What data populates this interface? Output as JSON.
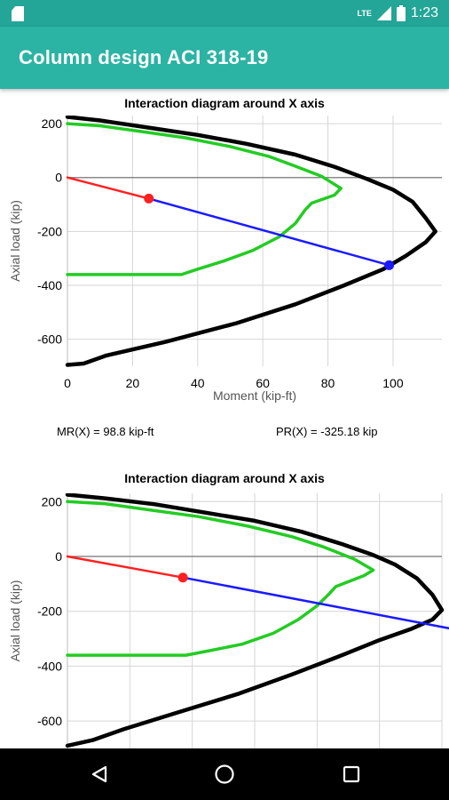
{
  "status_bar": {
    "time": "1:23",
    "network_label": "LTE",
    "sd_icon": "sd-card-icon",
    "signal_icon": "signal-icon",
    "battery_icon": "battery-icon"
  },
  "app_bar": {
    "title": "Column design ACI 318-19"
  },
  "results": {
    "mr": "MR(X) = 98.8 kip-ft",
    "pr": "PR(X) = -325.18 kip"
  },
  "nav_bar": {
    "back_icon": "back-triangle-icon",
    "home_icon": "home-circle-icon",
    "recents_icon": "recents-square-icon"
  },
  "colors": {
    "status_bar": "#23a597",
    "app_bar": "#2bb3a4",
    "nominal": "#000000",
    "design": "#22cc22",
    "load_segment": "#ff2020",
    "extension_segment": "#1a1aff"
  },
  "chart_data": [
    {
      "type": "line",
      "title": "Interaction diagram around X axis",
      "xlabel": "Moment (kip-ft)",
      "ylabel": "Axial load (kip)",
      "xlim": [
        0,
        115
      ],
      "ylim": [
        -700,
        230
      ],
      "x_ticks": [
        "0",
        "20",
        "40",
        "60",
        "80",
        "100"
      ],
      "y_ticks": [
        "200",
        "0",
        "-200",
        "-400",
        "-600"
      ],
      "grid": true,
      "series": [
        {
          "color": "#000000",
          "points": [
            [
              0,
              225
            ],
            [
              10,
              212
            ],
            [
              25,
              185
            ],
            [
              40,
              158
            ],
            [
              55,
              125
            ],
            [
              70,
              85
            ],
            [
              82,
              40
            ],
            [
              92,
              -5
            ],
            [
              100,
              -45
            ],
            [
              106,
              -90
            ],
            [
              110,
              -150
            ],
            [
              113,
              -200
            ],
            [
              110,
              -240
            ],
            [
              104,
              -290
            ],
            [
              97,
              -340
            ],
            [
              85,
              -400
            ],
            [
              70,
              -470
            ],
            [
              52,
              -540
            ],
            [
              30,
              -610
            ],
            [
              12,
              -660
            ],
            [
              5,
              -690
            ],
            [
              0,
              -695
            ]
          ]
        },
        {
          "color": "#22cc22",
          "points": [
            [
              0,
              200
            ],
            [
              10,
              192
            ],
            [
              22,
              172
            ],
            [
              36,
              148
            ],
            [
              50,
              115
            ],
            [
              62,
              78
            ],
            [
              70,
              42
            ],
            [
              78,
              5
            ],
            [
              84,
              -40
            ],
            [
              82,
              -65
            ],
            [
              75,
              -95
            ],
            [
              73,
              -120
            ],
            [
              70,
              -170
            ],
            [
              65,
              -220
            ],
            [
              57,
              -270
            ],
            [
              48,
              -310
            ],
            [
              40,
              -340
            ],
            [
              35,
              -360
            ],
            [
              0,
              -360
            ]
          ]
        },
        {
          "color": "#ff2020",
          "points": [
            [
              0,
              0
            ],
            [
              25,
              -78
            ]
          ]
        },
        {
          "color": "#1a1aff",
          "points": [
            [
              25,
              -78
            ],
            [
              98.8,
              -325.18
            ]
          ]
        }
      ],
      "markers": [
        {
          "color": "#ff2020",
          "x": 25,
          "y": -78
        },
        {
          "color": "#1a1aff",
          "x": 98.8,
          "y": -325.18
        }
      ]
    },
    {
      "type": "line",
      "title": "Interaction diagram around X axis",
      "xlabel": "",
      "ylabel": "Axial load (kip)",
      "xlim": [
        0,
        120
      ],
      "ylim": [
        -700,
        230
      ],
      "x_ticks": [],
      "y_ticks": [
        "200",
        "0",
        "-200",
        "-400",
        "-600"
      ],
      "grid": true,
      "series": [
        {
          "color": "#000000",
          "points": [
            [
              0,
              225
            ],
            [
              12,
              212
            ],
            [
              28,
              190
            ],
            [
              45,
              158
            ],
            [
              60,
              130
            ],
            [
              75,
              90
            ],
            [
              88,
              45
            ],
            [
              98,
              5
            ],
            [
              105,
              -30
            ],
            [
              112,
              -80
            ],
            [
              117,
              -140
            ],
            [
              120,
              -195
            ],
            [
              117,
              -230
            ],
            [
              110,
              -265
            ],
            [
              100,
              -305
            ],
            [
              88,
              -360
            ],
            [
              72,
              -430
            ],
            [
              55,
              -500
            ],
            [
              35,
              -570
            ],
            [
              18,
              -630
            ],
            [
              8,
              -670
            ],
            [
              0,
              -690
            ]
          ]
        },
        {
          "color": "#22cc22",
          "points": [
            [
              0,
              200
            ],
            [
              12,
              192
            ],
            [
              26,
              170
            ],
            [
              42,
              145
            ],
            [
              58,
              110
            ],
            [
              72,
              72
            ],
            [
              82,
              35
            ],
            [
              92,
              -10
            ],
            [
              98,
              -50
            ],
            [
              95,
              -70
            ],
            [
              86,
              -110
            ],
            [
              84,
              -135
            ],
            [
              80,
              -180
            ],
            [
              74,
              -230
            ],
            [
              66,
              -280
            ],
            [
              56,
              -320
            ],
            [
              45,
              -345
            ],
            [
              38,
              -360
            ],
            [
              0,
              -360
            ]
          ]
        },
        {
          "color": "#ff2020",
          "points": [
            [
              0,
              0
            ],
            [
              37,
              -77
            ]
          ]
        },
        {
          "color": "#1a1aff",
          "points": [
            [
              37,
              -77
            ],
            [
              126,
              -270
            ]
          ]
        }
      ],
      "markers": [
        {
          "color": "#ff2020",
          "x": 37,
          "y": -77
        },
        {
          "color": "#1a1aff",
          "x": 126,
          "y": -270
        }
      ]
    }
  ]
}
